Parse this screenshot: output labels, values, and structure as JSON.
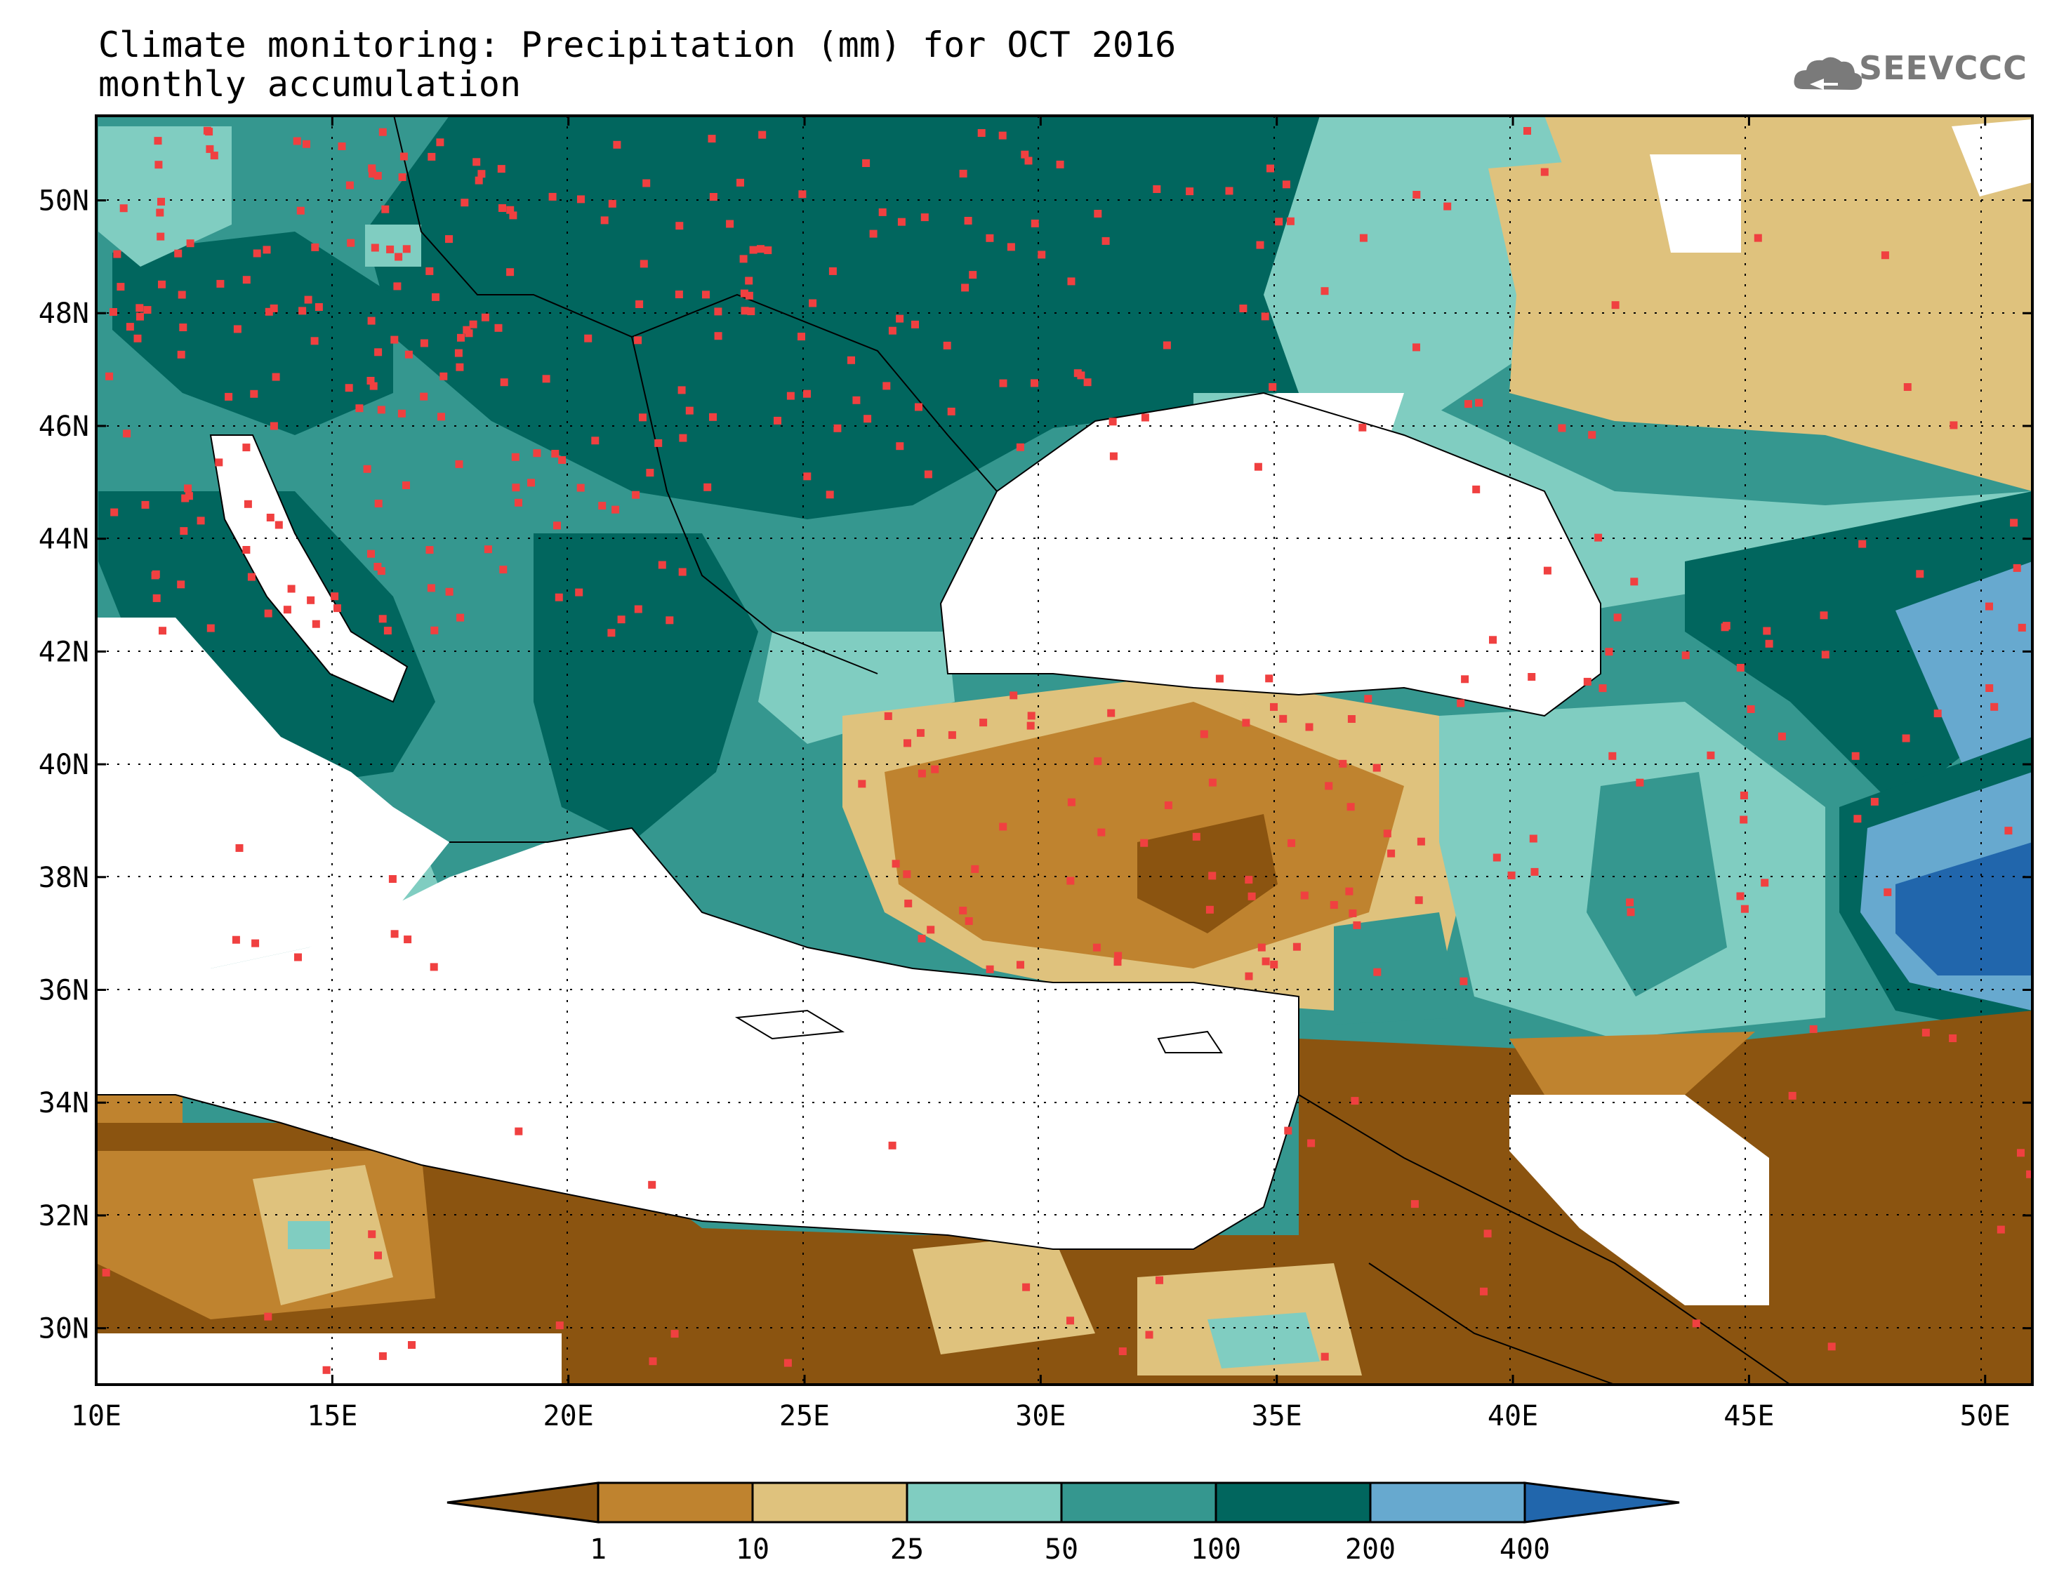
{
  "header": {
    "title": "Climate monitoring: Precipitation (mm) for OCT 2016",
    "subtitle": "monthly accumulation",
    "logo_text": "SEEVCCC"
  },
  "map": {
    "lon_range": [
      10,
      51
    ],
    "lat_range": [
      29,
      51.5
    ],
    "lat_ticks": [
      "50N",
      "48N",
      "46N",
      "44N",
      "42N",
      "40N",
      "38N",
      "36N",
      "34N",
      "32N",
      "30N"
    ],
    "lon_ticks": [
      "10E",
      "15E",
      "20E",
      "25E",
      "30E",
      "35E",
      "40E",
      "45E",
      "50E"
    ],
    "grid": "dotted"
  },
  "legend": {
    "levels": [
      "1",
      "10",
      "25",
      "50",
      "100",
      "200",
      "400"
    ],
    "colors": [
      "#8b5410",
      "#bf832f",
      "#dfc27d",
      "#80cdc1",
      "#35978f",
      "#01665e",
      "#67a9cf",
      "#2166ac"
    ]
  }
}
